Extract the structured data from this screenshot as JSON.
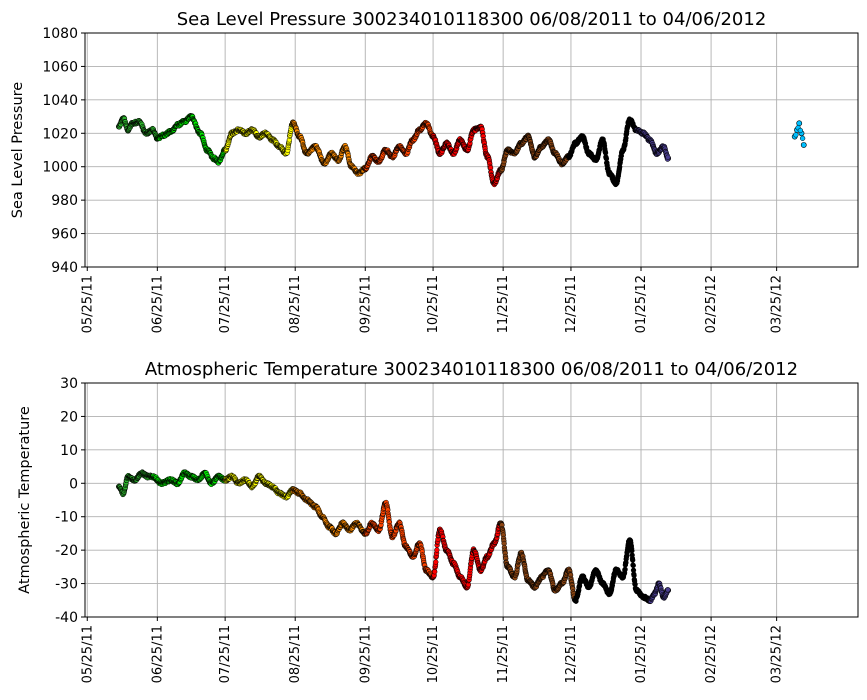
{
  "chart_data": [
    {
      "type": "scatter",
      "title": "Sea Level Pressure 300234010118300  06/08/2011 to 04/06/2012",
      "ylabel": "Sea Level Pressure",
      "xlabel": "",
      "ylim": [
        940,
        1080
      ],
      "yticks": [
        940,
        960,
        980,
        1000,
        1020,
        1040,
        1060,
        1080
      ],
      "xlim": [
        "2011-05-24",
        "2012-04-30"
      ],
      "xticks": [
        "05/25/11",
        "06/25/11",
        "07/25/11",
        "08/25/11",
        "09/25/11",
        "10/25/11",
        "11/25/11",
        "12/25/11",
        "01/25/12",
        "02/25/12",
        "03/25/12"
      ],
      "grid": true,
      "series": [
        {
          "color": "#2db52d",
          "x": [
            "2011-06-08",
            "2011-06-10",
            "2011-06-12",
            "2011-06-14",
            "2011-06-17",
            "2011-06-20",
            "2011-06-23",
            "2011-06-25"
          ],
          "y": [
            1024,
            1029,
            1022,
            1026,
            1027,
            1020,
            1022,
            1017
          ]
        },
        {
          "color": "#00ee00",
          "x": [
            "2011-06-25",
            "2011-06-28",
            "2011-07-01",
            "2011-07-04",
            "2011-07-07",
            "2011-07-10",
            "2011-07-14",
            "2011-07-17",
            "2011-07-20",
            "2011-07-22",
            "2011-07-25"
          ],
          "y": [
            1017,
            1019,
            1021,
            1025,
            1027,
            1030,
            1020,
            1010,
            1005,
            1003,
            1010
          ]
        },
        {
          "color": "#ffff00",
          "x": [
            "2011-07-25",
            "2011-07-28",
            "2011-07-31",
            "2011-08-03",
            "2011-08-06",
            "2011-08-09",
            "2011-08-12",
            "2011-08-15",
            "2011-08-18",
            "2011-08-21",
            "2011-08-24"
          ],
          "y": [
            1010,
            1020,
            1022,
            1020,
            1022,
            1018,
            1020,
            1016,
            1012,
            1008,
            1026
          ]
        },
        {
          "color": "#ff8c00",
          "x": [
            "2011-08-24",
            "2011-08-27",
            "2011-08-30",
            "2011-09-03",
            "2011-09-07",
            "2011-09-10",
            "2011-09-13",
            "2011-09-16",
            "2011-09-19",
            "2011-09-22",
            "2011-09-25"
          ],
          "y": [
            1026,
            1018,
            1008,
            1012,
            1002,
            1008,
            1004,
            1012,
            1000,
            996,
            999
          ]
        },
        {
          "color": "#ff4500",
          "x": [
            "2011-09-25",
            "2011-09-28",
            "2011-10-01",
            "2011-10-04",
            "2011-10-07",
            "2011-10-10",
            "2011-10-13",
            "2011-10-16",
            "2011-10-19",
            "2011-10-22",
            "2011-10-25"
          ],
          "y": [
            999,
            1006,
            1003,
            1010,
            1006,
            1012,
            1008,
            1016,
            1022,
            1026,
            1018
          ]
        },
        {
          "color": "#ff0000",
          "x": [
            "2011-10-25",
            "2011-10-28",
            "2011-10-31",
            "2011-11-03",
            "2011-11-06",
            "2011-11-09",
            "2011-11-12",
            "2011-11-15",
            "2011-11-18",
            "2011-11-21",
            "2011-11-24"
          ],
          "y": [
            1018,
            1008,
            1014,
            1008,
            1016,
            1010,
            1022,
            1024,
            1006,
            990,
            998
          ]
        },
        {
          "color": "#8b4513",
          "x": [
            "2011-11-24",
            "2011-11-27",
            "2011-11-30",
            "2011-12-03",
            "2011-12-06",
            "2011-12-09",
            "2011-12-12",
            "2011-12-15",
            "2011-12-18",
            "2011-12-21",
            "2011-12-24"
          ],
          "y": [
            998,
            1010,
            1008,
            1014,
            1018,
            1006,
            1012,
            1016,
            1008,
            1002,
            1006
          ]
        },
        {
          "color": "#000000",
          "x": [
            "2011-12-24",
            "2011-12-27",
            "2011-12-30",
            "2012-01-02",
            "2012-01-05",
            "2012-01-08",
            "2012-01-11",
            "2012-01-14",
            "2012-01-17",
            "2012-01-20",
            "2012-01-23"
          ],
          "y": [
            1006,
            1014,
            1018,
            1008,
            1004,
            1016,
            996,
            990,
            1010,
            1028,
            1022
          ]
        },
        {
          "color": "#4b3f8f",
          "x": [
            "2012-01-23",
            "2012-01-26",
            "2012-01-29",
            "2012-02-01",
            "2012-02-04",
            "2012-02-06"
          ],
          "y": [
            1022,
            1020,
            1016,
            1008,
            1012,
            1005
          ]
        },
        {
          "color": "#00bfff",
          "x": [
            "2012-04-02",
            "2012-04-03",
            "2012-04-04",
            "2012-04-05",
            "2012-04-06"
          ],
          "y": [
            1018,
            1022,
            1026,
            1020,
            1013
          ]
        }
      ]
    },
    {
      "type": "scatter",
      "title": "Atmospheric Temperature 300234010118300  06/08/2011 to 04/06/2012",
      "ylabel": "Atmospheric Temperature",
      "xlabel": "",
      "ylim": [
        -40,
        30
      ],
      "yticks": [
        -40,
        -30,
        -20,
        -10,
        0,
        10,
        20,
        30
      ],
      "xlim": [
        "2011-05-24",
        "2012-04-30"
      ],
      "xticks": [
        "05/25/11",
        "06/25/11",
        "07/25/11",
        "08/25/11",
        "09/25/11",
        "10/25/11",
        "11/25/11",
        "12/25/11",
        "01/25/12",
        "02/25/12",
        "03/25/12"
      ],
      "grid": true,
      "series": [
        {
          "color": "#2db52d",
          "x": [
            "2011-06-08",
            "2011-06-10",
            "2011-06-12",
            "2011-06-15",
            "2011-06-18",
            "2011-06-21",
            "2011-06-23"
          ],
          "y": [
            -1,
            -3,
            2,
            1,
            3,
            2,
            2
          ]
        },
        {
          "color": "#00ee00",
          "x": [
            "2011-06-23",
            "2011-06-27",
            "2011-07-01",
            "2011-07-04",
            "2011-07-07",
            "2011-07-10",
            "2011-07-13",
            "2011-07-16",
            "2011-07-19",
            "2011-07-22",
            "2011-07-25"
          ],
          "y": [
            2,
            0,
            1,
            0,
            3,
            2,
            1,
            3,
            0,
            2,
            1
          ]
        },
        {
          "color": "#ffff00",
          "x": [
            "2011-07-25",
            "2011-07-28",
            "2011-07-31",
            "2011-08-03",
            "2011-08-06",
            "2011-08-09",
            "2011-08-12",
            "2011-08-15",
            "2011-08-18",
            "2011-08-21",
            "2011-08-24"
          ],
          "y": [
            1,
            2,
            0,
            1,
            -1,
            2,
            0,
            -1,
            -3,
            -4,
            -2
          ]
        },
        {
          "color": "#ff8c00",
          "x": [
            "2011-08-24",
            "2011-08-27",
            "2011-08-30",
            "2011-09-03",
            "2011-09-06",
            "2011-09-09",
            "2011-09-12",
            "2011-09-15",
            "2011-09-18",
            "2011-09-21",
            "2011-09-25"
          ],
          "y": [
            -2,
            -3,
            -5,
            -7,
            -10,
            -13,
            -15,
            -12,
            -14,
            -12,
            -15
          ]
        },
        {
          "color": "#ff4500",
          "x": [
            "2011-09-25",
            "2011-09-28",
            "2011-10-01",
            "2011-10-04",
            "2011-10-07",
            "2011-10-10",
            "2011-10-13",
            "2011-10-16",
            "2011-10-19",
            "2011-10-22",
            "2011-10-25"
          ],
          "y": [
            -15,
            -12,
            -14,
            -6,
            -16,
            -12,
            -19,
            -22,
            -18,
            -26,
            -28
          ]
        },
        {
          "color": "#ff0000",
          "x": [
            "2011-10-25",
            "2011-10-28",
            "2011-10-31",
            "2011-11-03",
            "2011-11-06",
            "2011-11-09",
            "2011-11-12",
            "2011-11-15",
            "2011-11-18",
            "2011-11-21",
            "2011-11-24"
          ],
          "y": [
            -28,
            -14,
            -20,
            -24,
            -28,
            -31,
            -20,
            -26,
            -22,
            -18,
            -12
          ]
        },
        {
          "color": "#8b4513",
          "x": [
            "2011-11-24",
            "2011-11-27",
            "2011-11-30",
            "2011-12-03",
            "2011-12-06",
            "2011-12-09",
            "2011-12-12",
            "2011-12-15",
            "2011-12-18",
            "2011-12-21",
            "2011-12-24",
            "2011-12-27"
          ],
          "y": [
            -12,
            -25,
            -28,
            -21,
            -29,
            -31,
            -28,
            -26,
            -32,
            -30,
            -26,
            -35
          ]
        },
        {
          "color": "#000000",
          "x": [
            "2011-12-27",
            "2011-12-30",
            "2012-01-02",
            "2012-01-05",
            "2012-01-08",
            "2012-01-11",
            "2012-01-14",
            "2012-01-17",
            "2012-01-20",
            "2012-01-23",
            "2012-01-26",
            "2012-01-29"
          ],
          "y": [
            -35,
            -28,
            -31,
            -26,
            -30,
            -33,
            -26,
            -28,
            -17,
            -32,
            -34,
            -35
          ]
        },
        {
          "color": "#4b3f8f",
          "x": [
            "2012-01-29",
            "2012-01-31",
            "2012-02-02",
            "2012-02-04",
            "2012-02-06"
          ],
          "y": [
            -35,
            -33,
            -30,
            -34,
            -32
          ]
        }
      ]
    }
  ]
}
